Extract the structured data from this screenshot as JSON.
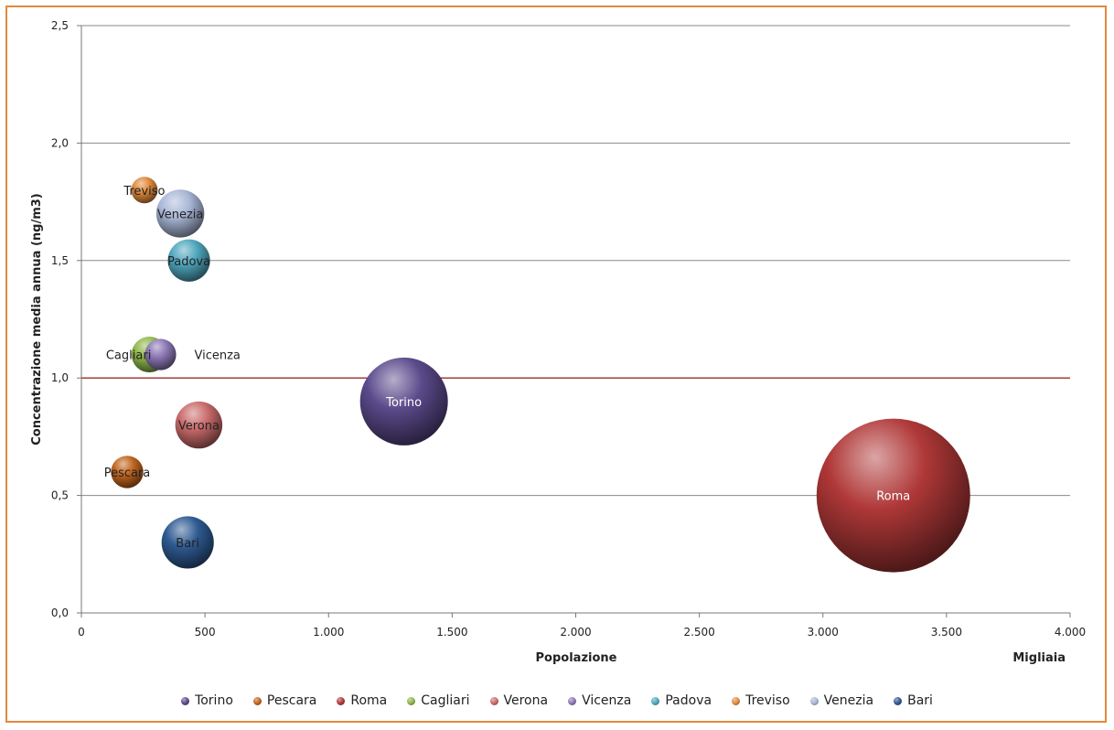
{
  "chart_data": {
    "type": "scatter",
    "subtype": "bubble",
    "title": "",
    "xlabel": "Popolazione",
    "x_unit_label": "Migliaia",
    "ylabel": "Concentrazione media annua (ng/m3)",
    "xlim": [
      0,
      4000
    ],
    "ylim": [
      0,
      2.5
    ],
    "x_ticks": [
      "0",
      "500",
      "1.000",
      "1.500",
      "2.000",
      "2.500",
      "3.000",
      "3.500",
      "4.000"
    ],
    "x_tick_values": [
      0,
      500,
      1000,
      1500,
      2000,
      2500,
      3000,
      3500,
      4000
    ],
    "y_ticks": [
      "0,0",
      "0,5",
      "1,0",
      "1,5",
      "2,0",
      "2,5"
    ],
    "y_tick_values": [
      0,
      0.5,
      1.0,
      1.5,
      2.0,
      2.5
    ],
    "grid": "horizontal",
    "reference_line": {
      "y": 1.0,
      "color": "#a03030"
    },
    "legend_position": "bottom",
    "series": [
      {
        "name": "Torino",
        "x": 1305,
        "y": 0.9,
        "size": 905,
        "color": "#5b4a8b"
      },
      {
        "name": "Pescara",
        "x": 185,
        "y": 0.6,
        "size": 123,
        "color": "#c0651e"
      },
      {
        "name": "Roma",
        "x": 3285,
        "y": 0.5,
        "size": 2770,
        "color": "#b03838"
      },
      {
        "name": "Cagliari",
        "x": 275,
        "y": 1.1,
        "size": 150,
        "color": "#8fb64a"
      },
      {
        "name": "Verona",
        "x": 475,
        "y": 0.8,
        "size": 260,
        "color": "#c96a6a"
      },
      {
        "name": "Vicenza",
        "x": 320,
        "y": 1.1,
        "size": 115,
        "color": "#8c78b4"
      },
      {
        "name": "Padova",
        "x": 435,
        "y": 1.5,
        "size": 210,
        "color": "#4fa6bd"
      },
      {
        "name": "Treviso",
        "x": 255,
        "y": 1.8,
        "size": 82,
        "color": "#e08a3c"
      },
      {
        "name": "Venezia",
        "x": 400,
        "y": 1.7,
        "size": 270,
        "color": "#a8b6d6"
      },
      {
        "name": "Bari",
        "x": 430,
        "y": 0.3,
        "size": 320,
        "color": "#2e5a91"
      }
    ]
  }
}
